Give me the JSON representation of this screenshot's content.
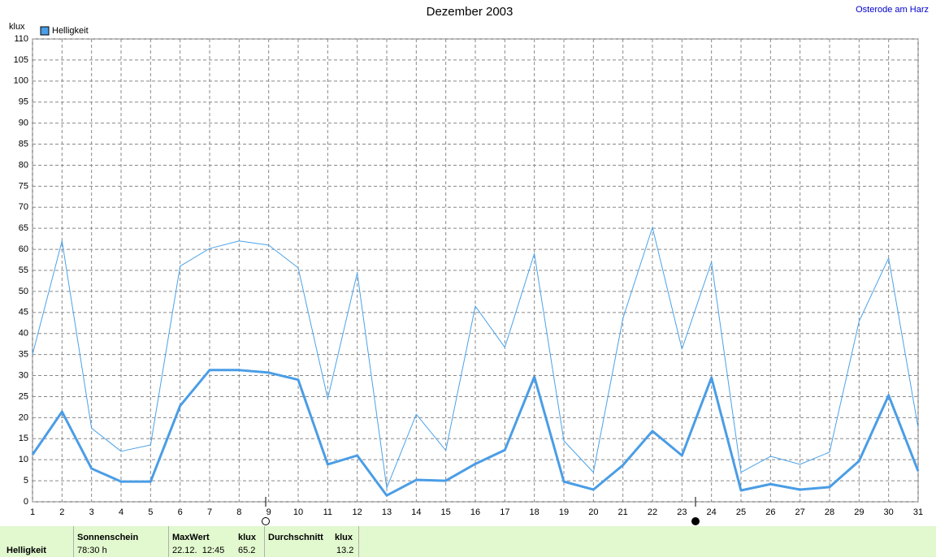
{
  "chart_data": {
    "type": "line",
    "title": "Dezember 2003",
    "location": "Osterode am Harz",
    "y_label": "klux",
    "x": [
      1,
      2,
      3,
      4,
      5,
      6,
      7,
      8,
      9,
      10,
      11,
      12,
      13,
      14,
      15,
      16,
      17,
      18,
      19,
      20,
      21,
      22,
      23,
      24,
      25,
      26,
      27,
      28,
      29,
      30,
      31
    ],
    "xlim": [
      1,
      31
    ],
    "xticks": [
      1,
      2,
      3,
      4,
      5,
      6,
      7,
      8,
      9,
      10,
      11,
      12,
      13,
      14,
      15,
      16,
      17,
      18,
      19,
      20,
      21,
      22,
      23,
      24,
      25,
      26,
      27,
      28,
      29,
      30,
      31
    ],
    "ylim": [
      0,
      110
    ],
    "yticks": [
      0,
      5,
      10,
      15,
      20,
      25,
      30,
      35,
      40,
      45,
      50,
      55,
      60,
      65,
      70,
      75,
      80,
      85,
      90,
      95,
      100,
      105,
      110
    ],
    "grid": true,
    "series": [
      {
        "color": "#4aa2ea",
        "values": [
          35,
          62,
          17.5,
          12,
          13.5,
          56,
          60.2,
          62,
          61,
          55.6,
          24.5,
          54.4,
          3.3,
          20.8,
          12.2,
          46.5,
          36.7,
          59,
          14.5,
          7,
          43.6,
          65.2,
          36.3,
          57,
          7,
          10.8,
          8.9,
          11.8,
          42.9,
          57.9,
          17.6
        ]
      },
      {
        "name": "Helligkeit",
        "color": "#4a9de6",
        "values": [
          11.2,
          21.4,
          7.9,
          4.8,
          4.8,
          22.8,
          31.3,
          31.3,
          30.7,
          29,
          8.9,
          11,
          1.5,
          5.2,
          5,
          9,
          12.3,
          29.7,
          4.8,
          2.9,
          8.7,
          16.8,
          11,
          29.5,
          2.7,
          4.2,
          2.9,
          3.5,
          9.7,
          25.3,
          7.3
        ]
      }
    ]
  },
  "summary": {
    "label": "Helligkeit",
    "sunshine_header": "Sonnenschein",
    "sunshine": "78:30 h",
    "max_header": "MaxWert",
    "max_unit": "klux",
    "max_time": "22.12.  12:45",
    "max_value": "65.2",
    "avg_header": "Durchschnitt",
    "avg_unit": "klux",
    "avg_value": "13.2"
  }
}
